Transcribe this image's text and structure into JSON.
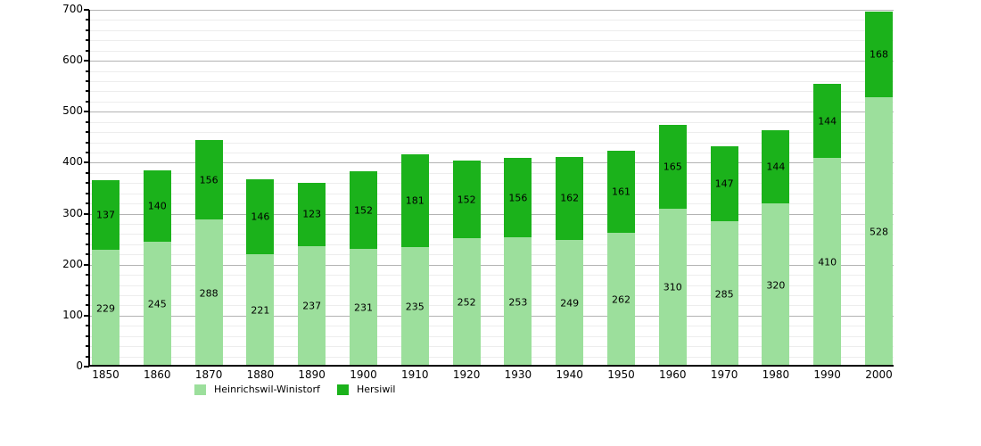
{
  "chart_data": {
    "type": "bar",
    "stacked": true,
    "title": "",
    "xlabel": "",
    "ylabel": "",
    "categories": [
      "1850",
      "1860",
      "1870",
      "1880",
      "1890",
      "1900",
      "1910",
      "1920",
      "1930",
      "1940",
      "1950",
      "1960",
      "1970",
      "1980",
      "1990",
      "2000"
    ],
    "series": [
      {
        "name": "Heinrichswil-Winistorf",
        "color": "#9cdf9c",
        "values": [
          229,
          245,
          288,
          221,
          237,
          231,
          235,
          252,
          253,
          249,
          262,
          310,
          285,
          320,
          410,
          528
        ]
      },
      {
        "name": "Hersiwil",
        "color": "#1bb21b",
        "values": [
          137,
          140,
          156,
          146,
          123,
          152,
          181,
          152,
          156,
          162,
          161,
          165,
          147,
          144,
          144,
          168
        ]
      }
    ],
    "totals": [
      366,
      385,
      444,
      367,
      360,
      383,
      416,
      404,
      409,
      411,
      423,
      475,
      432,
      464,
      554,
      696
    ],
    "ylim": [
      0,
      700
    ],
    "y_major_step": 100,
    "y_minor_step": 20,
    "y_tick_labels": [
      "0",
      "100",
      "200",
      "300",
      "400",
      "500",
      "600",
      "700"
    ],
    "grid": true,
    "bar_value_labels": true,
    "legend_position": "bottom"
  },
  "colors": {
    "background": "#ffffff",
    "axis": "#000000",
    "grid_minor": "#ededed",
    "grid_major": "#b3b3b3",
    "text": "#000000"
  }
}
